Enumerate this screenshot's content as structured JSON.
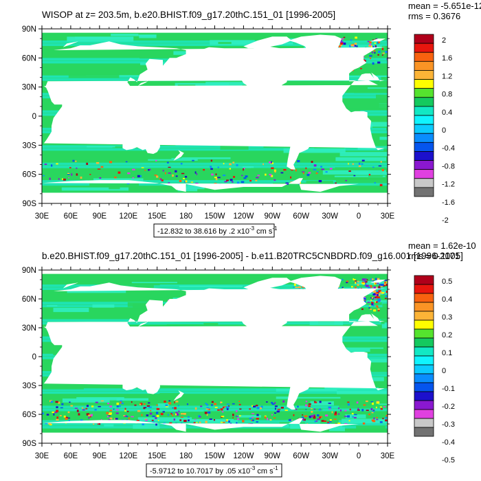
{
  "chart_data": [
    {
      "type": "heatmap",
      "title": "WISOP at z= 203.5m, b.e20.BHIST.f09_g17.20thC.151_01 [1996-2005]",
      "stats": {
        "mean": "mean = -5.651e-12",
        "rms": "rms = 0.3676"
      },
      "range_label": "-12.832 to 38.616 by .2 x10",
      "range_exp": "-3",
      "range_unit": " cm s",
      "range_unit_exp": "-1",
      "x_ticks": [
        "30E",
        "60E",
        "90E",
        "120E",
        "150E",
        "180",
        "150W",
        "120W",
        "90W",
        "60W",
        "30W",
        "0",
        "30E"
      ],
      "y_ticks": [
        "90N",
        "60N",
        "30N",
        "0",
        "30S",
        "60S",
        "90S"
      ],
      "xlim": [
        30,
        390
      ],
      "ylim": [
        -90,
        90
      ],
      "colorbar_labels": [
        "2",
        "1.6",
        "1.2",
        "0.8",
        "0.4",
        "0",
        "-0.4",
        "-0.8",
        "-1.2",
        "-1.6",
        "-2"
      ]
    },
    {
      "type": "heatmap",
      "title": "b.e20.BHIST.f09_g17.20thC.151_01 [1996-2005] - b.e11.B20TRC5CNBDRD.f09_g16.001 [1996-2005]",
      "stats": {
        "mean": "mean = 1.62e-10",
        "rms": "rms = 0.1171"
      },
      "range_label": "-5.9712 to 10.7017 by .05 x10",
      "range_exp": "-3",
      "range_unit": " cm s",
      "range_unit_exp": "-1",
      "x_ticks": [
        "30E",
        "60E",
        "90E",
        "120E",
        "150E",
        "180",
        "150W",
        "120W",
        "90W",
        "60W",
        "30W",
        "0",
        "30E"
      ],
      "y_ticks": [
        "90N",
        "60N",
        "30N",
        "0",
        "30S",
        "60S",
        "90S"
      ],
      "xlim": [
        30,
        390
      ],
      "ylim": [
        -90,
        90
      ],
      "colorbar_labels": [
        "0.5",
        "0.4",
        "0.3",
        "0.2",
        "0.1",
        "0",
        "-0.1",
        "-0.2",
        "-0.3",
        "-0.4",
        "-0.5"
      ]
    }
  ],
  "colors": {
    "palette": [
      "#b0001a",
      "#e8160e",
      "#f8620f",
      "#fa9425",
      "#fcb437",
      "#fefe00",
      "#55e32e",
      "#14c95e",
      "#12e8c4",
      "#10f4fe",
      "#0ccbfe",
      "#0a8dfe",
      "#0555ee",
      "#1c10cc",
      "#8a18d0",
      "#e040e0",
      "#c8c8c8",
      "#727272"
    ],
    "ocean_main": "#29d65e",
    "ocean_alt": "#1de6c0",
    "ocean_pale": "#2feec2",
    "land": "#ffffff"
  }
}
